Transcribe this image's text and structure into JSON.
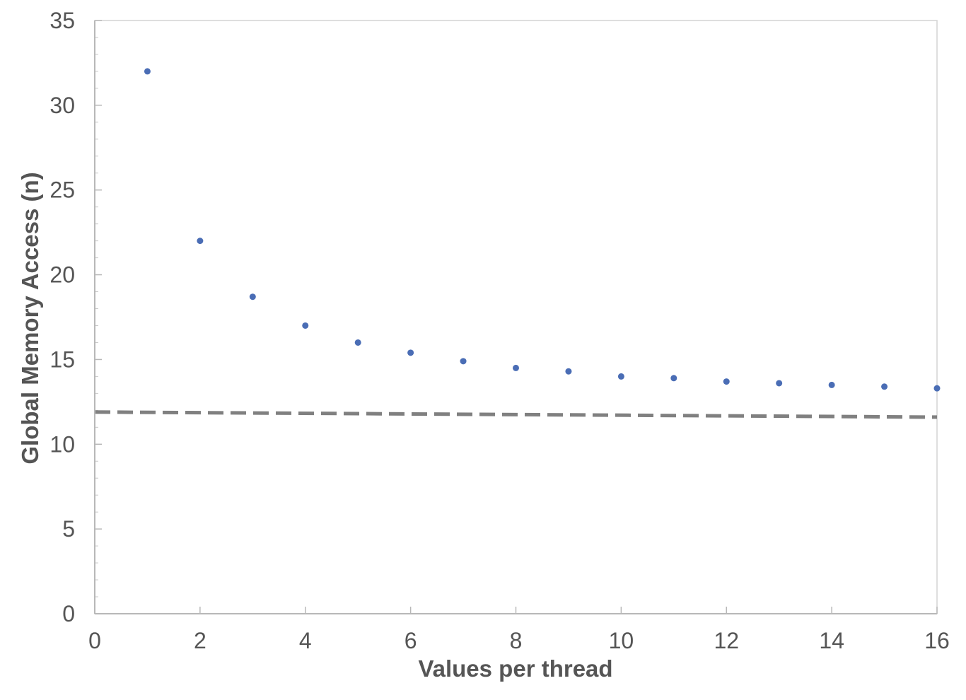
{
  "chart_data": {
    "type": "scatter",
    "xlabel": "Values per thread",
    "ylabel": "Global Memory Access (n)",
    "xlim": [
      0,
      16
    ],
    "ylim": [
      0,
      35
    ],
    "x_ticks": [
      0,
      2,
      4,
      6,
      8,
      10,
      12,
      14,
      16
    ],
    "y_ticks": [
      0,
      5,
      10,
      15,
      20,
      25,
      30,
      35
    ],
    "x_tick_labels": [
      "0",
      "2",
      "4",
      "6",
      "8",
      "10",
      "12",
      "14",
      "16"
    ],
    "y_tick_labels": [
      "0",
      "5",
      "10",
      "15",
      "20",
      "25",
      "30",
      "35"
    ],
    "grid": false,
    "series": [
      {
        "style": "markers",
        "color": "#4a6db5",
        "x": [
          1,
          2,
          3,
          4,
          5,
          6,
          7,
          8,
          9,
          10,
          11,
          12,
          13,
          14,
          15,
          16
        ],
        "y": [
          32.0,
          22.0,
          18.7,
          17.0,
          16.0,
          15.4,
          14.9,
          14.5,
          14.3,
          14.0,
          13.9,
          13.7,
          13.6,
          13.5,
          13.4,
          13.3
        ]
      },
      {
        "style": "dashed-line",
        "color": "#808080",
        "x": [
          0,
          16
        ],
        "y": [
          11.9,
          11.6
        ]
      }
    ]
  }
}
